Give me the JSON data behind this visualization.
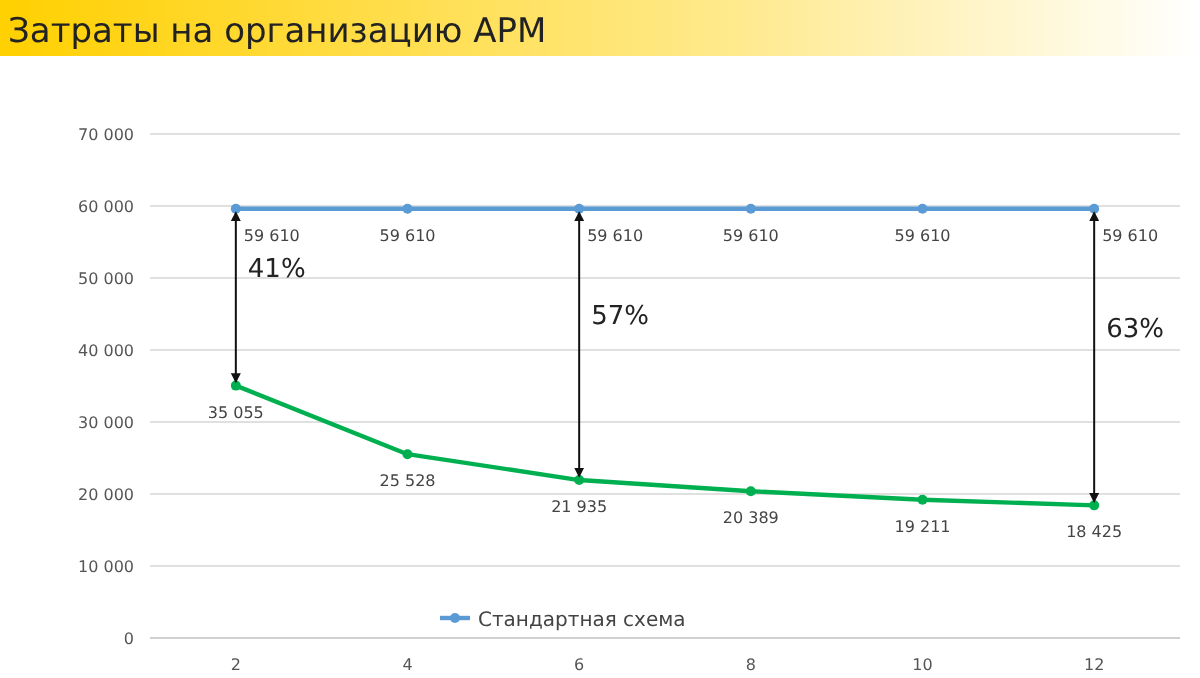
{
  "chart_data": {
    "type": "line",
    "title": "Затраты на организацию АРМ",
    "categories": [
      "2",
      "4",
      "6",
      "8",
      "10",
      "12"
    ],
    "series": [
      {
        "name": "Стандартная схема",
        "color": "#5b9bd5",
        "values": [
          59610,
          59610,
          59610,
          59610,
          59610,
          59610
        ],
        "value_labels": [
          "59 610",
          "59 610",
          "59 610",
          "59 610",
          "59 610",
          "59 610"
        ]
      },
      {
        "color": "#00b050",
        "values": [
          35055,
          25528,
          21935,
          20389,
          19211,
          18425
        ],
        "value_labels": [
          "35 055",
          "25 528",
          "21 935",
          "20 389",
          "19 211",
          "18 425"
        ]
      }
    ],
    "ylim": [
      0,
      70000
    ],
    "yticks": [
      0,
      {
        "value": 10000,
        "label": "10 000"
      },
      {
        "value": 20000,
        "label": "20 000"
      },
      {
        "value": 30000,
        "label": "30 000"
      },
      {
        "value": 40000,
        "label": "40 000"
      },
      {
        "value": 50000,
        "label": "50 000"
      },
      {
        "value": 60000,
        "label": "60 000"
      },
      {
        "value": 70000,
        "label": "70 000"
      }
    ],
    "grid": "y",
    "legend": "bottom",
    "marker": "circle",
    "ref_lines": [
      {
        "axis": "x",
        "value": "2",
        "label": "41%"
      },
      {
        "axis": "x",
        "value": "6",
        "label": "57%"
      },
      {
        "axis": "x",
        "value": "12",
        "label": "63%"
      }
    ]
  }
}
